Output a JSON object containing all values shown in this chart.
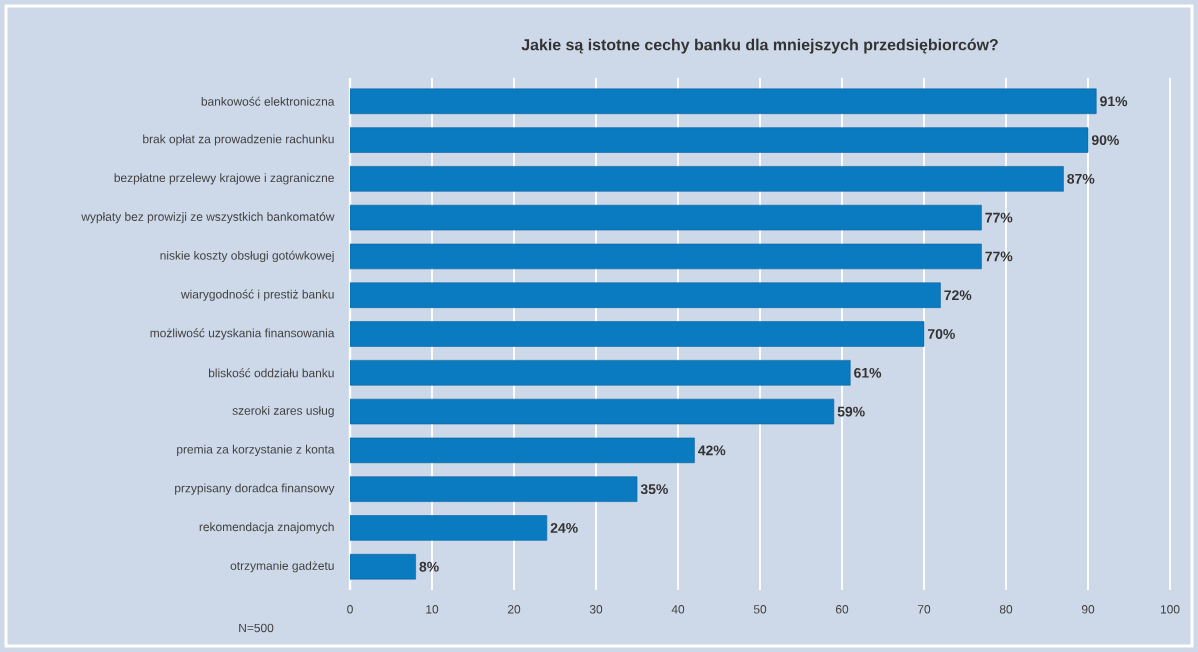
{
  "chart_data": {
    "type": "bar",
    "orientation": "horizontal",
    "title": "Jakie są istotne cechy banku dla mniejszych przedsiębiorców?",
    "categories": [
      "bankowość elektroniczna",
      "brak opłat za prowadzenie rachunku",
      "bezpłatne przelewy krajowe i zagraniczne",
      "wypłaty bez prowizji ze wszystkich bankomatów",
      "niskie koszty obsługi gotówkowej",
      "wiarygodność i prestiż banku",
      "możliwość uzyskania finansowania",
      "bliskość oddziału banku",
      "szeroki zares usług",
      "premia za korzystanie z konta",
      "przypisany doradca finansowy",
      "rekomendacja znajomych",
      "otrzymanie gadżetu"
    ],
    "values": [
      91,
      90,
      87,
      77,
      77,
      72,
      70,
      61,
      59,
      42,
      35,
      24,
      8
    ],
    "value_labels": [
      "91%",
      "90%",
      "87%",
      "77%",
      "77%",
      "72%",
      "70%",
      "61%",
      "59%",
      "42%",
      "35%",
      "24%",
      "8%"
    ],
    "color": "#0a7bc1",
    "xlim": [
      0,
      100
    ],
    "xticks": [
      0,
      10,
      20,
      30,
      40,
      50,
      60,
      70,
      80,
      90,
      100
    ],
    "grid": "x",
    "annotations": [
      "N=500"
    ]
  }
}
